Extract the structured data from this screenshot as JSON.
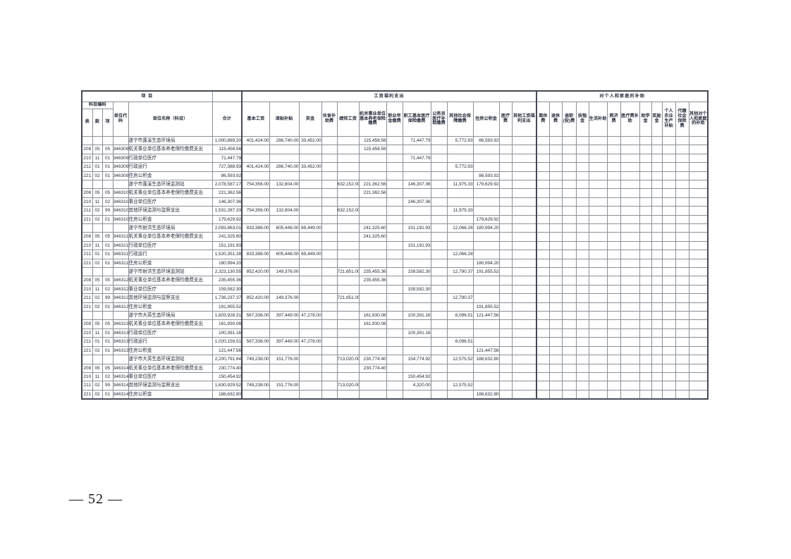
{
  "page": {
    "number_label": "— 52 —"
  },
  "table": {
    "header": {
      "project_label": "项  目",
      "subject_code_label": "科目编码",
      "code_cols": [
        "类",
        "款",
        "项"
      ],
      "unit_code_label": "单位代码",
      "unit_name_label": "单位名称（科目）",
      "total_label": "合计",
      "group1_label": "工资福利支出",
      "group1_cols": [
        "基本工资",
        "津贴补贴",
        "奖金",
        "伙食补助费",
        "绩效工资",
        "机关事业单位基本养老保险缴费",
        "职业年金缴费",
        "职工基本医疗保险缴费",
        "公务员医疗补助缴费",
        "其他社会保障缴费",
        "住房公积金",
        "医疗费",
        "其他工资福利支出"
      ],
      "group2_label": "对个人和家庭的补助",
      "group2_cols": [
        "离休费",
        "退休费",
        "退职(役)费",
        "抚恤金",
        "生活补助",
        "救济费",
        "医疗费补助",
        "助学金",
        "奖励金",
        "个人农业生产补贴",
        "代缴社会保险费",
        "其他对个人和家庭的补助"
      ]
    },
    "rows": [
      [
        "",
        "",
        "",
        "",
        "遂宁市蓬溪生态环境局",
        "1,000,889.20",
        "401,424.00",
        "286,740.00",
        "33,452.00",
        "",
        "",
        "115,458.56",
        "",
        "71,447.79",
        "",
        "5,772.93",
        "86,593.92",
        "",
        ""
      ],
      [
        "208",
        "05",
        "05",
        "346309",
        "机关事业单位基本养老保险缴费支出",
        "115,458.56",
        "",
        "",
        "",
        "",
        "",
        "115,458.56",
        "",
        "",
        "",
        "",
        "",
        "",
        ""
      ],
      [
        "210",
        "11",
        "01",
        "346309",
        "行政单位医疗",
        "71,447.79",
        "",
        "",
        "",
        "",
        "",
        "",
        "",
        "71,447.79",
        "",
        "",
        "",
        "",
        ""
      ],
      [
        "211",
        "01",
        "01",
        "346309",
        "行政运行",
        "727,388.93",
        "401,424.00",
        "286,740.00",
        "33,452.00",
        "",
        "",
        "",
        "",
        "",
        "",
        "5,772.93",
        "",
        "",
        ""
      ],
      [
        "221",
        "02",
        "01",
        "346309",
        "住房公积金",
        "86,593.92",
        "",
        "",
        "",
        "",
        "",
        "",
        "",
        "",
        "",
        "",
        "86,593.92",
        "",
        ""
      ],
      [
        "",
        "",
        "",
        "",
        "遂宁市蓬溪生态环境监测站",
        "2,078,587.17",
        "754,356.00",
        "132,804.00",
        "",
        "",
        "632,152.00",
        "221,362.56",
        "",
        "146,307.36",
        "",
        "11,975.33",
        "179,629.92",
        "",
        ""
      ],
      [
        "208",
        "05",
        "05",
        "346310",
        "机关事业单位基本养老保险缴费支出",
        "221,362.56",
        "",
        "",
        "",
        "",
        "",
        "221,362.56",
        "",
        "",
        "",
        "",
        "",
        "",
        ""
      ],
      [
        "210",
        "11",
        "02",
        "346310",
        "事业单位医疗",
        "146,307.36",
        "",
        "",
        "",
        "",
        "",
        "",
        "",
        "146,307.36",
        "",
        "",
        "",
        "",
        ""
      ],
      [
        "211",
        "02",
        "99",
        "346310",
        "其他环境监测与监察支出",
        "1,531,287.33",
        "754,356.00",
        "132,804.00",
        "",
        "",
        "632,152.00",
        "",
        "",
        "",
        "",
        "11,975.33",
        "",
        "",
        ""
      ],
      [
        "221",
        "02",
        "01",
        "346310",
        "住房公积金",
        "179,629.92",
        "",
        "",
        "",
        "",
        "",
        "",
        "",
        "",
        "",
        "",
        "179,629.92",
        "",
        ""
      ],
      [
        "",
        "",
        "",
        "",
        "遂宁市射洪生态环境局",
        "2,093,863.01",
        "833,388.00",
        "605,448.00",
        "69,449.00",
        "",
        "",
        "241,325.60",
        "",
        "151,191.93",
        "",
        "12,066.28",
        "180,994.20",
        "",
        ""
      ],
      [
        "208",
        "05",
        "05",
        "346311",
        "机关事业单位基本养老保险缴费支出",
        "241,325.60",
        "",
        "",
        "",
        "",
        "",
        "241,325.60",
        "",
        "",
        "",
        "",
        "",
        "",
        ""
      ],
      [
        "210",
        "11",
        "01",
        "346311",
        "行政单位医疗",
        "151,191.93",
        "",
        "",
        "",
        "",
        "",
        "",
        "",
        "151,191.93",
        "",
        "",
        "",
        "",
        ""
      ],
      [
        "211",
        "01",
        "01",
        "346311",
        "行政运行",
        "1,520,351.28",
        "833,388.00",
        "605,448.00",
        "69,449.00",
        "",
        "",
        "",
        "",
        "",
        "",
        "12,066.28",
        "",
        "",
        ""
      ],
      [
        "221",
        "02",
        "01",
        "346311",
        "住房公积金",
        "180,994.20",
        "",
        "",
        "",
        "",
        "",
        "",
        "",
        "",
        "",
        "",
        "180,994.20",
        "",
        ""
      ],
      [
        "",
        "",
        "",
        "",
        "遂宁市射洪生态环境监测站",
        "2,323,130.55",
        "852,420.00",
        "149,376.00",
        "",
        "",
        "721,651.00",
        "235,455.36",
        "",
        "159,582.30",
        "",
        "12,790.37",
        "191,855.52",
        "",
        ""
      ],
      [
        "208",
        "05",
        "05",
        "346312",
        "机关事业单位基本养老保险缴费支出",
        "235,455.36",
        "",
        "",
        "",
        "",
        "",
        "235,455.36",
        "",
        "",
        "",
        "",
        "",
        "",
        ""
      ],
      [
        "210",
        "11",
        "02",
        "346312",
        "事业单位医疗",
        "159,582.30",
        "",
        "",
        "",
        "",
        "",
        "",
        "",
        "159,582.30",
        "",
        "",
        "",
        "",
        ""
      ],
      [
        "211",
        "02",
        "99",
        "346312",
        "其他环境监测与监察支出",
        "1,736,237.37",
        "852,420.00",
        "149,376.00",
        "",
        "",
        "721,651.00",
        "",
        "",
        "",
        "",
        "12,790.37",
        "",
        "",
        ""
      ],
      [
        "221",
        "02",
        "01",
        "346312",
        "住房公积金",
        "191,855.52",
        "",
        "",
        "",
        "",
        "",
        "",
        "",
        "",
        "",
        "",
        "191,855.52",
        "",
        ""
      ],
      [
        "",
        "",
        "",
        "",
        "遂宁市大英生态环境局",
        "1,603,928.31",
        "567,336.00",
        "397,449.00",
        "47,278.00",
        "",
        "",
        "161,930.08",
        "",
        "100,391.16",
        "",
        "8,096.51",
        "121,447.56",
        "",
        ""
      ],
      [
        "208",
        "05",
        "05",
        "346313",
        "机关事业单位基本养老保险缴费支出",
        "161,930.08",
        "",
        "",
        "",
        "",
        "",
        "161,930.08",
        "",
        "",
        "",
        "",
        "",
        "",
        ""
      ],
      [
        "210",
        "11",
        "01",
        "346313",
        "行政单位医疗",
        "100,391.16",
        "",
        "",
        "",
        "",
        "",
        "",
        "",
        "100,391.16",
        "",
        "",
        "",
        "",
        ""
      ],
      [
        "211",
        "01",
        "01",
        "346313",
        "行政运行",
        "1,020,159.51",
        "567,336.00",
        "397,449.00",
        "47,278.00",
        "",
        "",
        "",
        "",
        "",
        "",
        "8,096.51",
        "",
        "",
        ""
      ],
      [
        "221",
        "02",
        "01",
        "346313",
        "住房公积金",
        "121,447.56",
        "",
        "",
        "",
        "",
        "",
        "",
        "",
        "",
        "",
        "",
        "121,447.56",
        "",
        ""
      ],
      [
        "",
        "",
        "",
        "",
        "遂宁市大英生态环境监测站",
        "2,200,791.64",
        "749,238.00",
        "151,776.00",
        "",
        "",
        "713,020.00",
        "230,774.40",
        "",
        "154,774.92",
        "",
        "12,575.52",
        "188,632.80",
        "",
        ""
      ],
      [
        "208",
        "05",
        "05",
        "346314",
        "机关事业单位基本养老保险缴费支出",
        "230,774.40",
        "",
        "",
        "",
        "",
        "",
        "230,774.40",
        "",
        "",
        "",
        "",
        "",
        "",
        ""
      ],
      [
        "210",
        "11",
        "02",
        "346314",
        "事业单位医疗",
        "150,454.92",
        "",
        "",
        "",
        "",
        "",
        "",
        "",
        "150,454.92",
        "",
        "",
        "",
        "",
        ""
      ],
      [
        "211",
        "02",
        "99",
        "346314",
        "其他环境监测与监察支出",
        "1,630,929.52",
        "749,238.00",
        "151,776.00",
        "",
        "",
        "713,020.00",
        "",
        "",
        "4,320.00",
        "",
        "12,575.52",
        "",
        "",
        ""
      ],
      [
        "221",
        "02",
        "01",
        "346314",
        "住房公积金",
        "188,632.80",
        "",
        "",
        "",
        "",
        "",
        "",
        "",
        "",
        "",
        "",
        "188,632.80",
        "",
        ""
      ]
    ]
  }
}
